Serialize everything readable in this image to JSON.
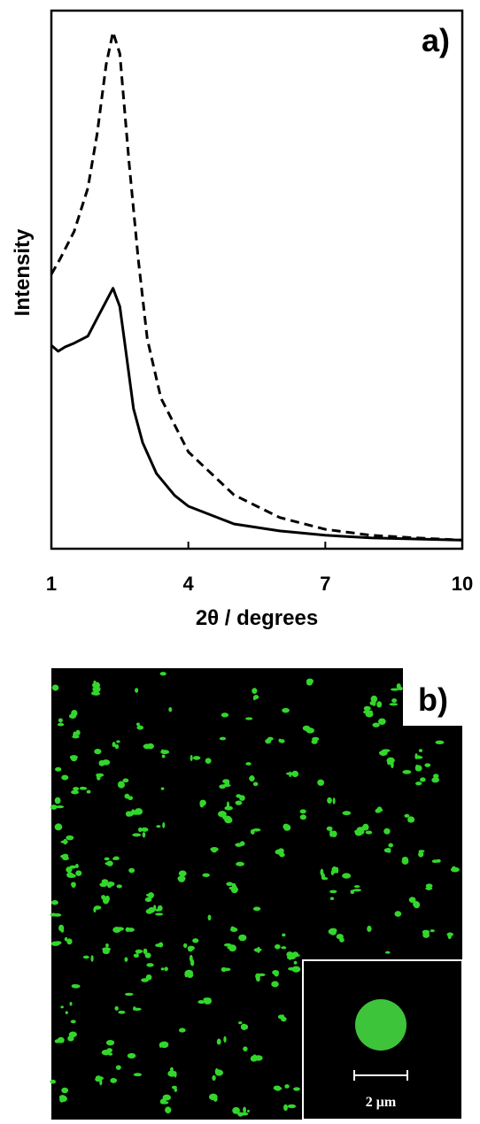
{
  "chart_data": {
    "type": "line",
    "panel_label": "a)",
    "ylabel": "Intensity",
    "xlabel": "2θ / degrees",
    "xlim": [
      1,
      10
    ],
    "xticks": [
      1,
      4,
      7,
      10
    ],
    "ylim": [
      0,
      100
    ],
    "series": [
      {
        "color": "#000000",
        "dashed": true,
        "x": [
          1,
          1.2,
          1.5,
          1.8,
          2.0,
          2.2,
          2.35,
          2.5,
          2.7,
          2.9,
          3.1,
          3.4,
          4,
          5,
          6,
          7,
          8,
          9,
          10
        ],
        "values": [
          51,
          54,
          59,
          67,
          77,
          90,
          96,
          92,
          72,
          54,
          39,
          28,
          18,
          10,
          5.8,
          3.6,
          2.5,
          2,
          1.6
        ]
      },
      {
        "color": "#000000",
        "dashed": false,
        "x": [
          1,
          1.15,
          1.3,
          1.5,
          1.8,
          2.0,
          2.2,
          2.35,
          2.5,
          2.6,
          2.8,
          3.0,
          3.3,
          3.7,
          4,
          5,
          6,
          7,
          8,
          10
        ],
        "values": [
          37.8,
          36.7,
          37.5,
          38.2,
          39.5,
          42.8,
          46,
          48.4,
          45,
          38.7,
          26,
          19.7,
          14,
          9.9,
          7.9,
          4.6,
          3.3,
          2.5,
          2,
          1.6
        ]
      }
    ]
  },
  "image_panel": {
    "panel_label": "b)",
    "scale_bar": "2 μm"
  }
}
